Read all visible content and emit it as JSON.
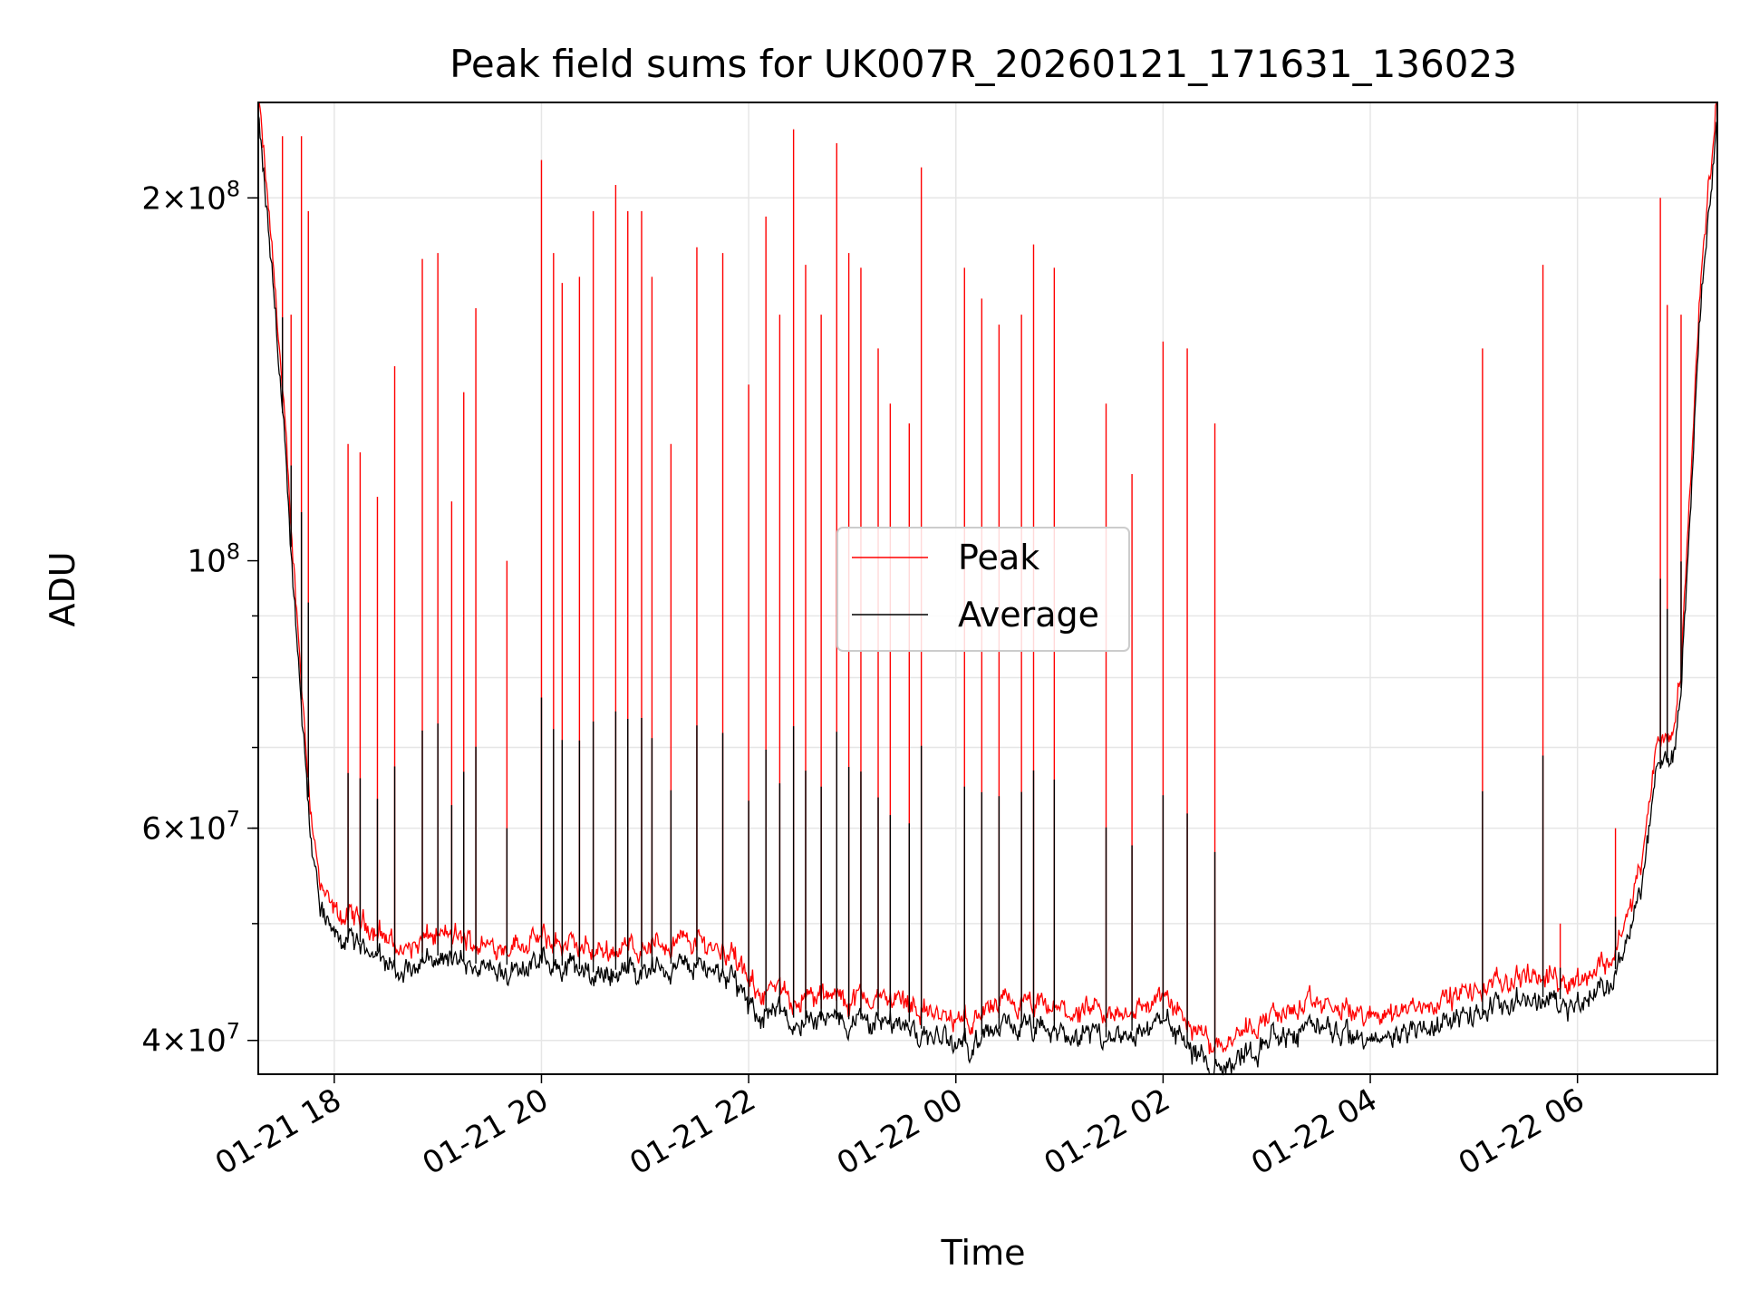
{
  "chart_data": {
    "type": "line",
    "title": "Peak field sums for UK007R_20260121_171631_136023",
    "xlabel": "Time",
    "ylabel": "ADU",
    "yscale": "log",
    "ylim": [
      37500000,
      240000000
    ],
    "xlim": [
      "2026-01-21 17:16",
      "2026-01-22 07:21"
    ],
    "grid": true,
    "legend_position": "center",
    "xticks": [
      {
        "t": "2026-01-21 18:00",
        "label": "01-21 18"
      },
      {
        "t": "2026-01-21 20:00",
        "label": "01-21 20"
      },
      {
        "t": "2026-01-21 22:00",
        "label": "01-21 22"
      },
      {
        "t": "2026-01-22 00:00",
        "label": "01-22 00"
      },
      {
        "t": "2026-01-22 02:00",
        "label": "01-22 02"
      },
      {
        "t": "2026-01-22 04:00",
        "label": "01-22 04"
      },
      {
        "t": "2026-01-22 06:00",
        "label": "01-22 06"
      }
    ],
    "yticks": [
      {
        "value": 40000000,
        "label": "4×10⁷",
        "mant": "4",
        "exp": "7"
      },
      {
        "value": 60000000,
        "label": "6×10⁷",
        "mant": "6",
        "exp": "7"
      },
      {
        "value": 100000000,
        "label": "10⁸",
        "mant": "",
        "exp": "8"
      },
      {
        "value": 200000000,
        "label": "2×10⁸",
        "mant": "2",
        "exp": "8"
      }
    ],
    "series": [
      {
        "name": "Peak",
        "color": "#ff0000",
        "baseline": [
          [
            "2026-01-21 17:16",
            240000000
          ],
          [
            "2026-01-21 17:22",
            190000000
          ],
          [
            "2026-01-21 17:28",
            150000000
          ],
          [
            "2026-01-21 17:34",
            110000000
          ],
          [
            "2026-01-21 17:40",
            82000000
          ],
          [
            "2026-01-21 17:46",
            62000000
          ],
          [
            "2026-01-21 17:52",
            52000000
          ],
          [
            "2026-01-21 18:00",
            50000000
          ],
          [
            "2026-01-21 18:20",
            49000000
          ],
          [
            "2026-01-21 18:40",
            46500000
          ],
          [
            "2026-01-21 19:00",
            48000000
          ],
          [
            "2026-01-21 19:30",
            47000000
          ],
          [
            "2026-01-21 20:00",
            47500000
          ],
          [
            "2026-01-21 20:30",
            46500000
          ],
          [
            "2026-01-21 21:00",
            47000000
          ],
          [
            "2026-01-21 21:30",
            47500000
          ],
          [
            "2026-01-21 21:50",
            46500000
          ],
          [
            "2026-01-21 22:00",
            43500000
          ],
          [
            "2026-01-21 22:30",
            42500000
          ],
          [
            "2026-01-21 23:00",
            42500000
          ],
          [
            "2026-01-21 23:30",
            42500000
          ],
          [
            "2026-01-21 23:50",
            41000000
          ],
          [
            "2026-01-22 00:00",
            40500000
          ],
          [
            "2026-01-22 00:30",
            42000000
          ],
          [
            "2026-01-22 01:00",
            41500000
          ],
          [
            "2026-01-22 01:30",
            41000000
          ],
          [
            "2026-01-22 02:00",
            42500000
          ],
          [
            "2026-01-22 02:15",
            40500000
          ],
          [
            "2026-01-22 02:30",
            39000000
          ],
          [
            "2026-01-22 03:00",
            41000000
          ],
          [
            "2026-01-22 03:30",
            42000000
          ],
          [
            "2026-01-22 04:00",
            41000000
          ],
          [
            "2026-01-22 04:30",
            42000000
          ],
          [
            "2026-01-22 05:00",
            43000000
          ],
          [
            "2026-01-22 05:30",
            44500000
          ],
          [
            "2026-01-22 06:00",
            44000000
          ],
          [
            "2026-01-22 06:20",
            46000000
          ],
          [
            "2026-01-22 06:30",
            50000000
          ],
          [
            "2026-01-22 06:40",
            58000000
          ],
          [
            "2026-01-22 06:45",
            68000000
          ],
          [
            "2026-01-22 06:55",
            70000000
          ],
          [
            "2026-01-22 07:00",
            80000000
          ],
          [
            "2026-01-22 07:05",
            112000000
          ],
          [
            "2026-01-22 07:12",
            175000000
          ],
          [
            "2026-01-22 07:21",
            240000000
          ]
        ],
        "spikes": [
          [
            "2026-01-21 17:30",
            225000000
          ],
          [
            "2026-01-21 17:35",
            160000000
          ],
          [
            "2026-01-21 17:41",
            225000000
          ],
          [
            "2026-01-21 17:45",
            195000000
          ],
          [
            "2026-01-21 18:08",
            125000000
          ],
          [
            "2026-01-21 18:15",
            123000000
          ],
          [
            "2026-01-21 18:25",
            113000000
          ],
          [
            "2026-01-21 18:35",
            145000000
          ],
          [
            "2026-01-21 18:51",
            178000000
          ],
          [
            "2026-01-21 19:00",
            180000000
          ],
          [
            "2026-01-21 19:08",
            112000000
          ],
          [
            "2026-01-21 19:15",
            138000000
          ],
          [
            "2026-01-21 19:22",
            162000000
          ],
          [
            "2026-01-21 19:40",
            100000000
          ],
          [
            "2026-01-21 20:00",
            215000000
          ],
          [
            "2026-01-21 20:07",
            180000000
          ],
          [
            "2026-01-21 20:12",
            170000000
          ],
          [
            "2026-01-21 20:22",
            172000000
          ],
          [
            "2026-01-21 20:30",
            195000000
          ],
          [
            "2026-01-21 20:43",
            205000000
          ],
          [
            "2026-01-21 20:50",
            195000000
          ],
          [
            "2026-01-21 20:58",
            195000000
          ],
          [
            "2026-01-21 21:04",
            172000000
          ],
          [
            "2026-01-21 21:15",
            125000000
          ],
          [
            "2026-01-21 21:30",
            182000000
          ],
          [
            "2026-01-21 21:45",
            180000000
          ],
          [
            "2026-01-21 22:00",
            140000000
          ],
          [
            "2026-01-21 22:10",
            193000000
          ],
          [
            "2026-01-21 22:18",
            160000000
          ],
          [
            "2026-01-21 22:26",
            228000000
          ],
          [
            "2026-01-21 22:33",
            176000000
          ],
          [
            "2026-01-21 22:42",
            160000000
          ],
          [
            "2026-01-21 22:51",
            222000000
          ],
          [
            "2026-01-21 22:58",
            180000000
          ],
          [
            "2026-01-21 23:05",
            175000000
          ],
          [
            "2026-01-21 23:15",
            150000000
          ],
          [
            "2026-01-21 23:22",
            135000000
          ],
          [
            "2026-01-21 23:33",
            130000000
          ],
          [
            "2026-01-21 23:40",
            212000000
          ],
          [
            "2026-01-22 00:05",
            175000000
          ],
          [
            "2026-01-22 00:15",
            165000000
          ],
          [
            "2026-01-22 00:25",
            157000000
          ],
          [
            "2026-01-22 00:38",
            160000000
          ],
          [
            "2026-01-22 00:45",
            183000000
          ],
          [
            "2026-01-22 00:57",
            175000000
          ],
          [
            "2026-01-22 01:27",
            135000000
          ],
          [
            "2026-01-22 01:42",
            118000000
          ],
          [
            "2026-01-22 02:00",
            152000000
          ],
          [
            "2026-01-22 02:14",
            150000000
          ],
          [
            "2026-01-22 02:30",
            130000000
          ],
          [
            "2026-01-22 05:05",
            150000000
          ],
          [
            "2026-01-22 05:40",
            176000000
          ],
          [
            "2026-01-22 05:50",
            50000000
          ],
          [
            "2026-01-22 06:22",
            60000000
          ],
          [
            "2026-01-22 06:48",
            200000000
          ],
          [
            "2026-01-22 06:52",
            163000000
          ],
          [
            "2026-01-22 07:00",
            160000000
          ]
        ]
      },
      {
        "name": "Average",
        "color": "#000000"
      }
    ]
  }
}
